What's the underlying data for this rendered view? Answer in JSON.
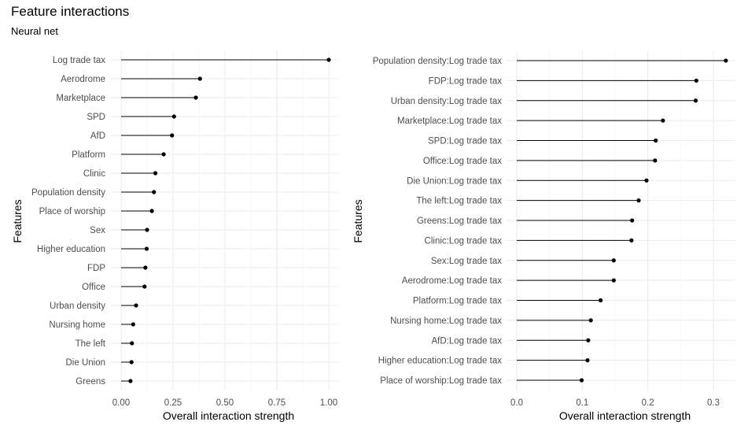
{
  "title": "Feature interactions",
  "subtitle": "Neural net",
  "chart_data": [
    {
      "type": "lollipop",
      "xlabel": "Overall interaction strength",
      "ylabel": "Features",
      "xlim": [
        0,
        1.0
      ],
      "xticks": [
        0.0,
        0.25,
        0.5,
        0.75,
        1.0
      ],
      "xtick_labels": [
        "0.00",
        "0.25",
        "0.50",
        "0.75",
        "1.00"
      ],
      "grid": true,
      "categories": [
        "Log trade tax",
        "Aerodrome",
        "Marketplace",
        "SPD",
        "AfD",
        "Platform",
        "Clinic",
        "Population density",
        "Place of worship",
        "Sex",
        "Higher education",
        "FDP",
        "Office",
        "Urban density",
        "Nursing home",
        "The left",
        "Die Union",
        "Greens"
      ],
      "values": [
        1.0,
        0.38,
        0.36,
        0.255,
        0.245,
        0.205,
        0.165,
        0.158,
        0.148,
        0.125,
        0.123,
        0.117,
        0.113,
        0.072,
        0.058,
        0.052,
        0.05,
        0.045
      ]
    },
    {
      "type": "lollipop",
      "xlabel": "Overall interaction strength",
      "ylabel": "Features",
      "xlim": [
        0,
        0.32
      ],
      "xticks": [
        0.0,
        0.1,
        0.2,
        0.3
      ],
      "xtick_labels": [
        "0.0",
        "0.1",
        "0.2",
        "0.3"
      ],
      "grid": true,
      "categories": [
        "Population density:Log trade tax",
        "FDP:Log trade tax",
        "Urban density:Log trade tax",
        "Marketplace:Log trade tax",
        "SPD:Log trade tax",
        "Office:Log trade tax",
        "Die Union:Log trade tax",
        "The left:Log trade tax",
        "Greens:Log trade tax",
        "Clinic:Log trade tax",
        "Sex:Log trade tax",
        "Aerodrome:Log trade tax",
        "Platform:Log trade tax",
        "Nursing home:Log trade tax",
        "AfD:Log trade tax",
        "Higher education:Log trade tax",
        "Place of worship:Log trade tax"
      ],
      "values": [
        0.319,
        0.274,
        0.273,
        0.223,
        0.212,
        0.211,
        0.198,
        0.186,
        0.176,
        0.175,
        0.148,
        0.148,
        0.128,
        0.113,
        0.109,
        0.108,
        0.099
      ]
    }
  ]
}
